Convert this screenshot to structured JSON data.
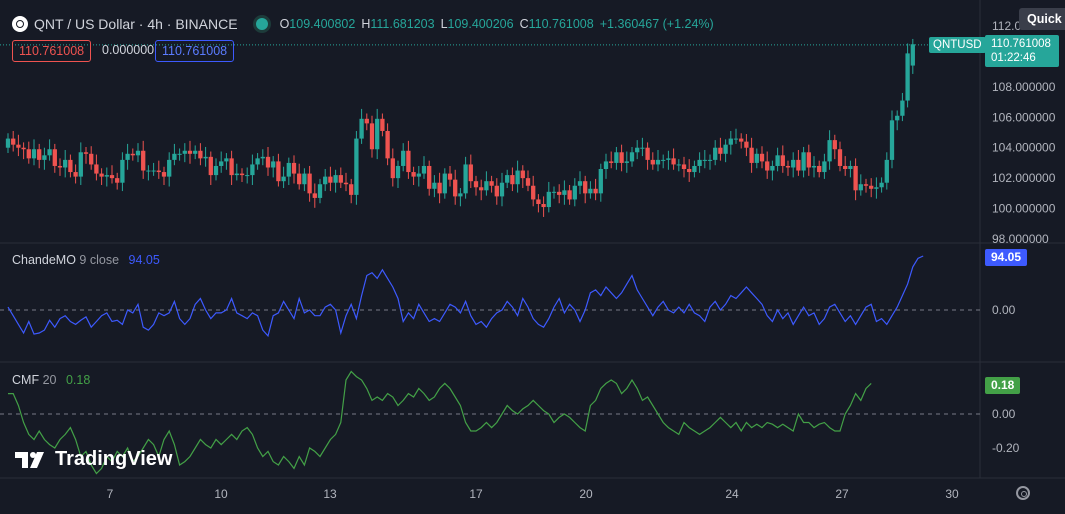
{
  "header": {
    "symbol": "QNT / US Dollar · 4h · BINANCE",
    "o_label": "O",
    "o": "109.400802",
    "h_label": "H",
    "h": "111.681203",
    "l_label": "L",
    "l": "109.400206",
    "c_label": "C",
    "c": "110.761008",
    "change": "+1.360467 (+1.24%)"
  },
  "toolbar": {
    "price_box_red": "110.761008",
    "zero_value": "0.000000",
    "price_box_blue": "110.761008",
    "quick_label": "Quick S"
  },
  "price_scale": {
    "ticker_tag": "QNTUSD",
    "last_price": "110.761008",
    "countdown": "01:22:46"
  },
  "indicators": {
    "chande": {
      "name": "ChandeMO",
      "params": "9 close",
      "value": "94.05"
    },
    "cmf": {
      "name": "CMF",
      "params": "20",
      "value": "0.18"
    }
  },
  "branding": {
    "logo_text": "TradingView"
  },
  "colors": {
    "up": "#26a69a",
    "down": "#ef5350",
    "chande": "#3d5afe",
    "cmf": "#43a047",
    "background": "#161a25"
  },
  "chart_data": [
    {
      "type": "candlestick",
      "name": "QNTUSD",
      "y_ticks": [
        "112.000000",
        "110.000000",
        "108.000000",
        "106.000000",
        "104.000000",
        "102.000000",
        "100.000000",
        "98.000000"
      ],
      "ylim": [
        98,
        112
      ],
      "x_ticks": [
        "7",
        "10",
        "13",
        "17",
        "20",
        "24",
        "27",
        "30"
      ],
      "close": [
        104.6,
        104.2,
        104.0,
        103.9,
        103.3,
        103.9,
        103.2,
        103.5,
        103.9,
        102.8,
        102.7,
        103.2,
        102.4,
        102.1,
        103.7,
        103.6,
        102.9,
        102.3,
        102.1,
        102.2,
        102.0,
        101.7,
        103.2,
        103.6,
        103.5,
        103.8,
        102.5,
        102.5,
        102.5,
        102.4,
        102.1,
        103.2,
        103.6,
        103.6,
        103.8,
        103.6,
        103.8,
        103.3,
        103.4,
        102.2,
        102.8,
        103.1,
        103.3,
        102.2,
        102.3,
        102.2,
        102.2,
        102.9,
        103.3,
        103.4,
        102.7,
        103.1,
        101.8,
        102.1,
        103.0,
        102.3,
        101.6,
        102.3,
        101.0,
        100.7,
        101.6,
        102.1,
        101.7,
        102.2,
        101.7,
        101.6,
        100.9,
        104.6,
        105.9,
        105.6,
        103.9,
        105.9,
        105.1,
        103.3,
        102.0,
        102.8,
        103.8,
        102.4,
        102.1,
        102.3,
        102.8,
        101.3,
        101.7,
        101.0,
        102.3,
        101.9,
        100.8,
        101.0,
        102.9,
        101.8,
        101.4,
        101.2,
        101.8,
        101.5,
        100.8,
        101.7,
        102.2,
        101.6,
        102.5,
        102.0,
        101.5,
        100.6,
        100.3,
        100.1,
        101.1,
        101.1,
        100.9,
        101.2,
        100.6,
        101.5,
        101.8,
        101.0,
        101.3,
        101.0,
        102.6,
        103.1,
        103.0,
        103.7,
        103.0,
        103.1,
        103.7,
        104.0,
        104.0,
        103.2,
        102.9,
        103.2,
        103.2,
        103.3,
        102.9,
        102.9,
        102.6,
        102.4,
        102.8,
        103.2,
        103.2,
        103.2,
        104.0,
        103.6,
        104.2,
        104.6,
        104.6,
        104.4,
        104.0,
        103.0,
        103.6,
        103.1,
        102.5,
        102.8,
        103.5,
        102.8,
        102.7,
        103.2,
        102.5,
        103.7,
        102.7,
        102.8,
        102.4,
        103.1,
        104.5,
        103.9,
        102.8,
        102.6,
        102.8,
        101.2,
        101.6,
        101.5,
        101.3,
        101.4,
        101.7,
        103.2,
        105.8,
        106.1,
        107.1,
        110.2,
        110.8
      ],
      "open": [
        104.0,
        104.6,
        104.2,
        104.0,
        103.9,
        103.3,
        103.9,
        103.2,
        103.5,
        103.9,
        102.8,
        102.7,
        103.2,
        102.4,
        102.1,
        103.7,
        103.6,
        102.9,
        102.3,
        102.1,
        102.2,
        102.0,
        101.7,
        103.2,
        103.6,
        103.5,
        103.8,
        102.5,
        102.5,
        102.5,
        102.4,
        102.1,
        103.2,
        103.6,
        103.6,
        103.8,
        103.6,
        103.8,
        103.3,
        103.4,
        102.2,
        102.8,
        103.1,
        103.3,
        102.2,
        102.3,
        102.2,
        102.2,
        102.9,
        103.3,
        103.4,
        102.7,
        103.1,
        101.8,
        102.1,
        103.0,
        102.3,
        101.6,
        102.3,
        101.0,
        100.7,
        101.6,
        102.1,
        101.7,
        102.2,
        101.7,
        101.6,
        100.9,
        104.6,
        105.9,
        105.6,
        103.9,
        105.9,
        105.1,
        103.3,
        102.0,
        102.8,
        103.8,
        102.4,
        102.1,
        102.3,
        102.8,
        101.3,
        101.7,
        101.0,
        102.3,
        101.9,
        100.8,
        101.0,
        102.9,
        101.8,
        101.4,
        101.2,
        101.8,
        101.5,
        100.8,
        101.7,
        102.2,
        101.6,
        102.5,
        102.0,
        101.5,
        100.6,
        100.3,
        100.1,
        101.1,
        101.1,
        100.9,
        101.2,
        100.6,
        101.5,
        101.8,
        101.0,
        101.3,
        101.0,
        102.6,
        103.1,
        103.0,
        103.7,
        103.0,
        103.1,
        103.7,
        104.0,
        104.0,
        103.2,
        102.9,
        103.2,
        103.2,
        103.3,
        102.9,
        102.9,
        102.6,
        102.4,
        102.8,
        103.2,
        103.2,
        103.2,
        104.0,
        103.6,
        104.2,
        104.6,
        104.6,
        104.4,
        104.0,
        103.0,
        103.6,
        103.1,
        102.5,
        102.8,
        103.5,
        102.8,
        102.7,
        103.2,
        102.5,
        103.7,
        102.7,
        102.8,
        102.4,
        103.1,
        104.5,
        103.9,
        102.8,
        102.6,
        102.8,
        101.2,
        101.6,
        101.5,
        101.3,
        101.4,
        101.7,
        103.2,
        105.8,
        106.1,
        107.1,
        109.4
      ],
      "last_price": 110.761008
    },
    {
      "type": "line",
      "name": "ChandeMO 9 close",
      "zero_line": 0,
      "ylabel_ticks": [
        "0.00"
      ],
      "last_value": 94.05,
      "values": [
        5,
        -10,
        -25,
        -40,
        -20,
        -42,
        -40,
        -35,
        -18,
        -30,
        -15,
        -10,
        -20,
        -25,
        -18,
        -12,
        -30,
        -20,
        -10,
        -5,
        -20,
        -18,
        -25,
        0,
        -5,
        10,
        -30,
        -35,
        -25,
        -5,
        -10,
        -5,
        15,
        -15,
        -25,
        -15,
        10,
        20,
        0,
        -15,
        -5,
        -5,
        0,
        20,
        -5,
        -10,
        -15,
        -5,
        -10,
        -35,
        -45,
        -10,
        -5,
        15,
        0,
        -15,
        20,
        -5,
        0,
        -10,
        -10,
        5,
        10,
        0,
        -40,
        -10,
        10,
        -15,
        25,
        60,
        65,
        55,
        70,
        55,
        40,
        20,
        -20,
        -5,
        -15,
        10,
        -5,
        -20,
        -15,
        -20,
        -5,
        10,
        5,
        -5,
        15,
        -10,
        -25,
        -20,
        -30,
        -15,
        -5,
        0,
        15,
        5,
        -10,
        20,
        5,
        -15,
        -25,
        -30,
        -15,
        5,
        20,
        -5,
        10,
        0,
        -20,
        0,
        30,
        35,
        25,
        40,
        30,
        20,
        30,
        45,
        60,
        35,
        20,
        5,
        -10,
        5,
        15,
        0,
        -5,
        5,
        -5,
        10,
        -5,
        -10,
        -20,
        5,
        15,
        0,
        10,
        25,
        20,
        30,
        40,
        30,
        20,
        10,
        -10,
        -20,
        0,
        -15,
        -5,
        -25,
        -10,
        5,
        -10,
        -5,
        -25,
        -15,
        5,
        10,
        -5,
        -20,
        -10,
        -25,
        -10,
        5,
        10,
        -20,
        -15,
        -25,
        -10,
        5,
        25,
        45,
        75,
        90,
        94
      ]
    },
    {
      "type": "line",
      "name": "CMF 20",
      "zero_line": 0,
      "ylabel_ticks": [
        "0.00",
        "-0.20"
      ],
      "last_value": 0.18,
      "values": [
        0.12,
        0.12,
        0.05,
        -0.05,
        -0.12,
        -0.15,
        -0.1,
        -0.15,
        -0.18,
        -0.2,
        -0.15,
        -0.12,
        -0.08,
        -0.15,
        -0.25,
        -0.22,
        -0.3,
        -0.35,
        -0.32,
        -0.25,
        -0.28,
        -0.22,
        -0.25,
        -0.2,
        -0.28,
        -0.25,
        -0.2,
        -0.15,
        -0.18,
        -0.25,
        -0.15,
        -0.1,
        -0.18,
        -0.3,
        -0.28,
        -0.25,
        -0.2,
        -0.15,
        -0.18,
        -0.2,
        -0.15,
        -0.18,
        -0.15,
        -0.12,
        -0.15,
        -0.1,
        -0.08,
        -0.12,
        -0.2,
        -0.25,
        -0.22,
        -0.28,
        -0.3,
        -0.25,
        -0.28,
        -0.32,
        -0.25,
        -0.3,
        -0.2,
        -0.22,
        -0.25,
        -0.2,
        -0.15,
        -0.12,
        -0.05,
        0.2,
        0.25,
        0.22,
        0.2,
        0.15,
        0.08,
        0.1,
        0.08,
        0.12,
        0.1,
        0.05,
        0.08,
        0.12,
        0.1,
        0.15,
        0.12,
        0.08,
        0.1,
        0.15,
        0.18,
        0.15,
        0.1,
        0.05,
        -0.05,
        -0.1,
        -0.1,
        -0.08,
        -0.05,
        -0.08,
        -0.05,
        0.0,
        0.05,
        0.02,
        0.0,
        0.03,
        0.05,
        0.08,
        0.05,
        0.02,
        0.0,
        -0.05,
        -0.02,
        0.0,
        -0.02,
        -0.05,
        -0.08,
        -0.1,
        0.05,
        0.08,
        0.15,
        0.18,
        0.2,
        0.18,
        0.12,
        0.15,
        0.2,
        0.15,
        0.08,
        0.1,
        0.05,
        0.0,
        -0.05,
        -0.08,
        -0.1,
        -0.12,
        -0.05,
        -0.08,
        -0.1,
        -0.12,
        -0.1,
        -0.08,
        -0.05,
        -0.02,
        -0.05,
        -0.08,
        -0.05,
        -0.1,
        -0.05,
        -0.08,
        -0.06,
        -0.08,
        -0.05,
        -0.06,
        -0.08,
        -0.06,
        -0.08,
        -0.1,
        0.0,
        -0.05,
        -0.05,
        -0.08,
        -0.06,
        -0.05,
        -0.08,
        -0.1,
        -0.1,
        0.0,
        0.05,
        0.12,
        0.08,
        0.15,
        0.18
      ]
    }
  ]
}
